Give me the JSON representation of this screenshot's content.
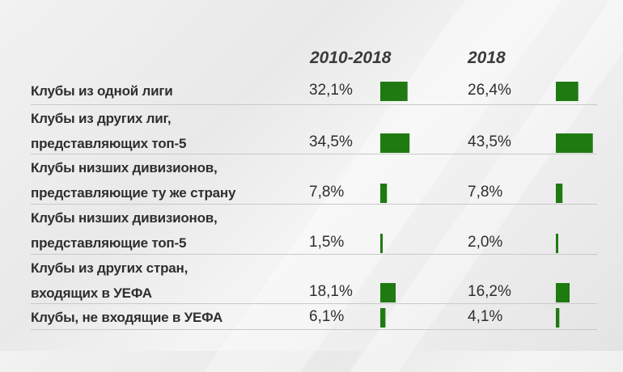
{
  "chart_data": {
    "type": "table",
    "columns": [
      "2010-2018",
      "2018"
    ],
    "rows": [
      {
        "label_lines": [
          "Клубы из одной лиги"
        ],
        "values": [
          32.1,
          26.4
        ],
        "value_labels": [
          "32,1%",
          "26,4%"
        ]
      },
      {
        "label_lines": [
          "Клубы  из других лиг,",
          "представляющих топ-5"
        ],
        "values": [
          34.5,
          43.5
        ],
        "value_labels": [
          "34,5%",
          "43,5%"
        ]
      },
      {
        "label_lines": [
          "Клубы низших дивизионов,",
          "представляющие ту же страну"
        ],
        "values": [
          7.8,
          7.8
        ],
        "value_labels": [
          "7,8%",
          "7,8%"
        ]
      },
      {
        "label_lines": [
          "Клубы низших дивизионов,",
          "представляющие топ-5"
        ],
        "values": [
          1.5,
          2.0
        ],
        "value_labels": [
          "1,5%",
          "2,0%"
        ]
      },
      {
        "label_lines": [
          "Клубы из других стран,",
          "входящих в УЕФА"
        ],
        "values": [
          18.1,
          16.2
        ],
        "value_labels": [
          "18,1%",
          "16,2%"
        ]
      },
      {
        "label_lines": [
          "Клубы, не входящие в УЕФА"
        ],
        "values": [
          6.1,
          4.1
        ],
        "value_labels": [
          "6,1%",
          "4,1%"
        ]
      }
    ],
    "bar_color": "#1f7a12"
  }
}
